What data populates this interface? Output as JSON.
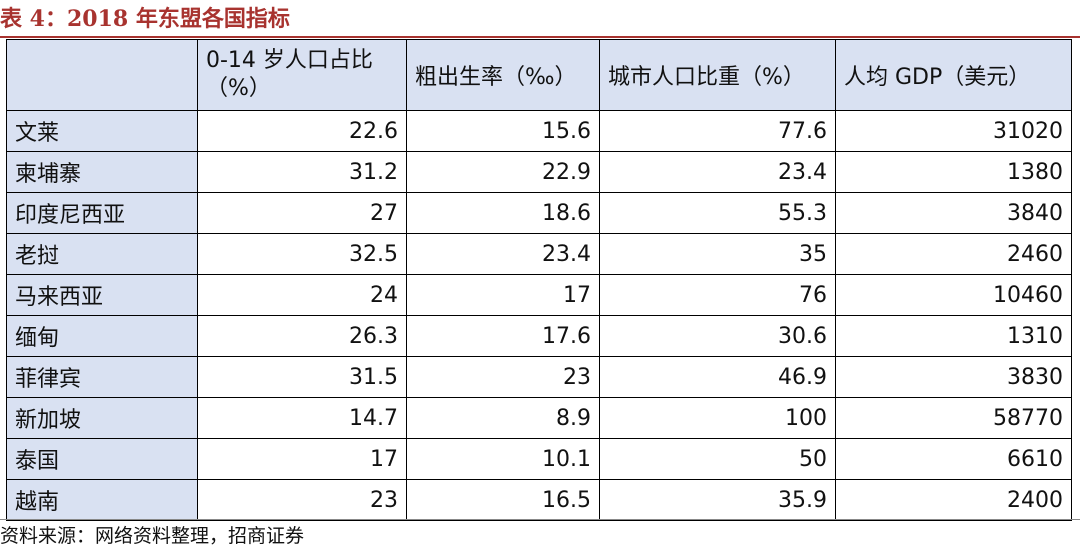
{
  "title": "表 4：2018 年东盟各国指标",
  "table": {
    "headers": [
      "",
      "0-14 岁人口占比（%）",
      "粗出生率（‰）",
      "城市人口比重（%）",
      "人均 GDP（美元）"
    ],
    "rows": [
      [
        "文莱",
        "22.6",
        "15.6",
        "77.6",
        "31020"
      ],
      [
        "柬埔寨",
        "31.2",
        "22.9",
        "23.4",
        "1380"
      ],
      [
        "印度尼西亚",
        "27",
        "18.6",
        "55.3",
        "3840"
      ],
      [
        "老挝",
        "32.5",
        "23.4",
        "35",
        "2460"
      ],
      [
        "马来西亚",
        "24",
        "17",
        "76",
        "10460"
      ],
      [
        "缅甸",
        "26.3",
        "17.6",
        "30.6",
        "1310"
      ],
      [
        "菲律宾",
        "31.5",
        "23",
        "46.9",
        "3830"
      ],
      [
        "新加坡",
        "14.7",
        "8.9",
        "100",
        "58770"
      ],
      [
        "泰国",
        "17",
        "10.1",
        "50",
        "6610"
      ],
      [
        "越南",
        "23",
        "16.5",
        "35.9",
        "2400"
      ]
    ]
  },
  "source": "资料来源：网络资料整理，招商证券"
}
